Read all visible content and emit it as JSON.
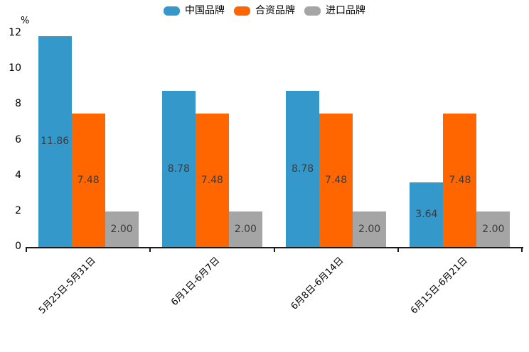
{
  "chart_data": {
    "type": "bar",
    "title": "",
    "xlabel": "",
    "ylabel": "%",
    "ylim": [
      0,
      12
    ],
    "yticks": [
      0,
      2,
      4,
      6,
      8,
      10,
      12
    ],
    "grid": false,
    "legend_position": "top-center",
    "value_label_format": "2-decimals",
    "categories": [
      "5月25日-5月31日",
      "6月1日-6月7日",
      "6月8日-6月14日",
      "6月15日-6月21日"
    ],
    "series": [
      {
        "name": "中国品牌",
        "color": "#3498cb",
        "values": [
          11.86,
          8.78,
          8.78,
          3.64
        ]
      },
      {
        "name": "合资品牌",
        "color": "#ff6600",
        "values": [
          7.48,
          7.48,
          7.48,
          7.48
        ]
      },
      {
        "name": "进口品牌",
        "color": "#a5a5a5",
        "values": [
          2.0,
          2.0,
          2.0,
          2.0
        ]
      }
    ]
  },
  "colors": {
    "axis": "#1a1a1a",
    "bar_value_label": "#3c3c3c",
    "tick_label": "#000000"
  }
}
